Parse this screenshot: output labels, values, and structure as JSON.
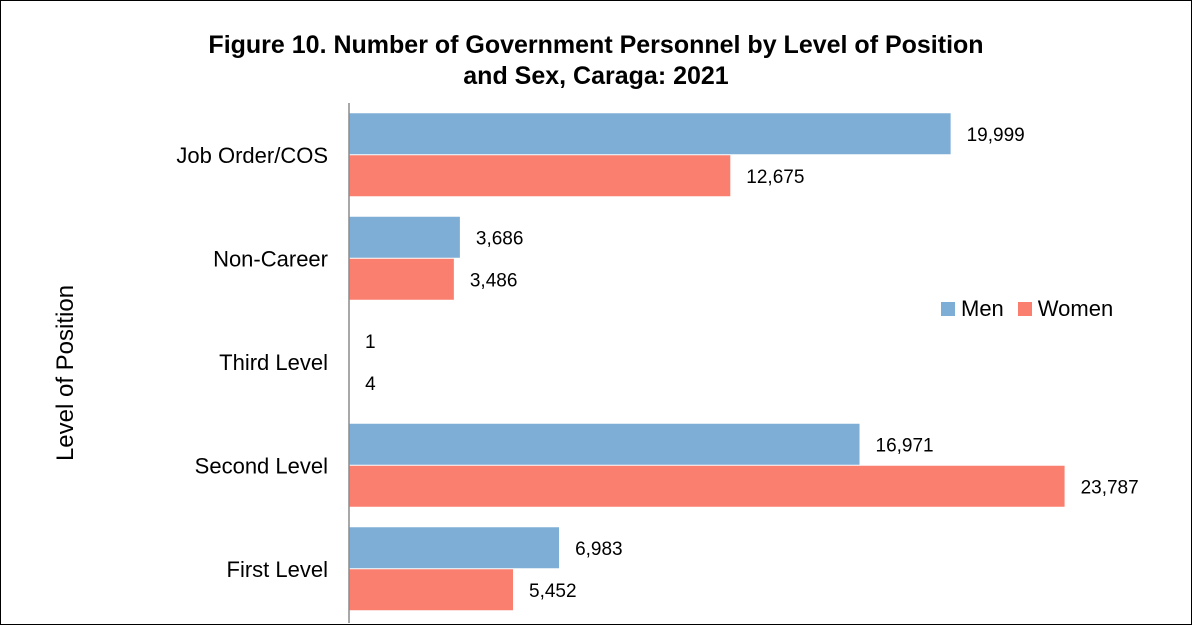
{
  "chart_data": {
    "type": "bar",
    "orientation": "horizontal",
    "title": "Figure 10. Number of Government Personnel by Level of Position and Sex, Caraga: 2021",
    "title_lines": [
      "Figure 10. Number of Government Personnel by Level of Position",
      "and Sex, Caraga: 2021"
    ],
    "ylabel": "Level of Position",
    "xlabel": "",
    "categories": [
      "Job Order/COS",
      "Non-Career",
      "Third Level",
      "Second Level",
      "First Level"
    ],
    "series": [
      {
        "name": "Men",
        "color": "#7EAED6",
        "values": [
          19999,
          3686,
          1,
          16971,
          6983
        ],
        "labels": [
          "19,999",
          "3,686",
          "1",
          "16,971",
          "6,983"
        ]
      },
      {
        "name": "Women",
        "color": "#FB7F6E",
        "values": [
          12675,
          3486,
          4,
          23787,
          5452
        ],
        "labels": [
          "12,675",
          "3,486",
          "4",
          "23,787",
          "5,452"
        ]
      }
    ],
    "xlim": [
      0,
      24300
    ],
    "grid": false,
    "show_x_axis": false,
    "legend_position": "right"
  }
}
